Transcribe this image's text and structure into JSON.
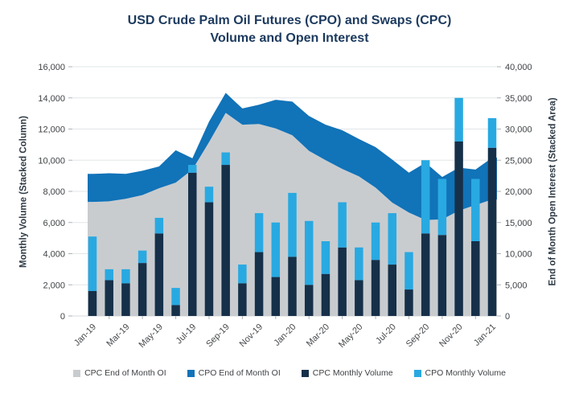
{
  "title": {
    "line1": "USD Crude Palm Oil Futures (CPO) and Swaps (CPC)",
    "line2": "Volume and Open Interest"
  },
  "colors": {
    "title": "#1C3A5E",
    "cpc_oi_area": "#C9CCCF",
    "cpo_oi_area": "#1173B8",
    "cpc_volume_bar": "#163049",
    "cpo_volume_bar": "#29A9E1",
    "gridline": "#E2E5E7",
    "tick": "#AEB3B6",
    "axis_text": "#3F4245"
  },
  "chart_data": {
    "type": "combo: stacked-column + stacked-area",
    "title": "USD Crude Palm Oil Futures (CPO) and Swaps (CPC) Volume and Open Interest",
    "categories": [
      "Jan-19",
      "Feb-19",
      "Mar-19",
      "Apr-19",
      "May-19",
      "Jun-19",
      "Jul-19",
      "Aug-19",
      "Sep-19",
      "Oct-19",
      "Nov-19",
      "Dec-19",
      "Jan-20",
      "Feb-20",
      "Mar-20",
      "Apr-20",
      "May-20",
      "Jun-20",
      "Jul-20",
      "Aug-20",
      "Sep-20",
      "Oct-20",
      "Nov-20",
      "Dec-20",
      "Jan-21"
    ],
    "x_labels_shown_every": 2,
    "series": [
      {
        "name": "CPC End of Month OI",
        "type": "area",
        "axis": "right",
        "color": "#C9CCCF",
        "values": [
          18300,
          18400,
          18800,
          19400,
          20500,
          21400,
          23500,
          27900,
          32600,
          30700,
          30800,
          30100,
          29000,
          26500,
          25000,
          23600,
          22400,
          20600,
          18200,
          16600,
          15400,
          15500,
          16900,
          17800,
          18700
        ]
      },
      {
        "name": "CPO End of Month OI",
        "type": "area",
        "axis": "right",
        "color": "#1173B8",
        "values": [
          4500,
          4500,
          4000,
          3900,
          3500,
          5200,
          1800,
          3300,
          3200,
          2600,
          3100,
          4600,
          5400,
          5600,
          5700,
          6200,
          6000,
          6500,
          6900,
          6400,
          9200,
          6800,
          6900,
          5700,
          6700
        ]
      },
      {
        "name": "CPC Monthly Volume",
        "type": "column",
        "axis": "left",
        "color": "#163049",
        "values": [
          1600,
          2300,
          2100,
          3400,
          5300,
          700,
          9200,
          7300,
          9700,
          2100,
          4100,
          2500,
          3800,
          2000,
          2700,
          4400,
          2300,
          3600,
          3300,
          1700,
          5300,
          5200,
          11200,
          4800,
          10800
        ]
      },
      {
        "name": "CPO Monthly Volume",
        "type": "column",
        "axis": "left",
        "color": "#29A9E1",
        "values": [
          3500,
          700,
          900,
          800,
          1000,
          1100,
          500,
          1000,
          800,
          1200,
          2500,
          3500,
          4100,
          4100,
          2100,
          2900,
          2100,
          2400,
          3300,
          2400,
          4700,
          3600,
          2800,
          4000,
          1900
        ]
      }
    ],
    "left_axis": {
      "title": "Monthly Volume (Stacked Column)",
      "min": 0,
      "max": 16000,
      "step": 2000
    },
    "right_axis": {
      "title": "End of Month Open Interest (Stacked Area)",
      "min": 0,
      "max": 40000,
      "step": 5000
    },
    "grid": true,
    "legend_position": "bottom"
  },
  "legend": {
    "items": [
      {
        "label": "CPC End of Month OI",
        "color": "#C9CCCF"
      },
      {
        "label": "CPO End of Month OI",
        "color": "#1173B8"
      },
      {
        "label": "CPC Monthly Volume",
        "color": "#163049"
      },
      {
        "label": "CPO Monthly Volume",
        "color": "#29A9E1"
      }
    ]
  }
}
